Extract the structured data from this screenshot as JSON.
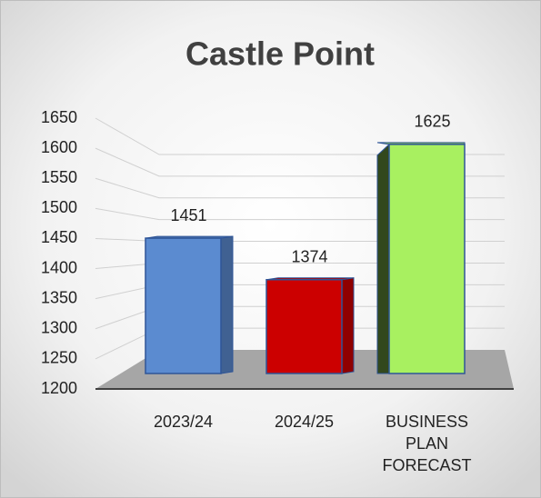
{
  "chart_data": {
    "type": "bar",
    "title": "Castle Point",
    "categories": [
      "2023/24",
      "2024/25",
      "BUSINESS PLAN FORECAST"
    ],
    "values": [
      1451,
      1374,
      1625
    ],
    "colors": [
      "#5b8bd0",
      "#cc0000",
      "#a8f060"
    ],
    "ylim": [
      1200,
      1650
    ],
    "yticks": [
      1200,
      1250,
      1300,
      1350,
      1400,
      1450,
      1500,
      1550,
      1600,
      1650
    ],
    "grid": true
  }
}
